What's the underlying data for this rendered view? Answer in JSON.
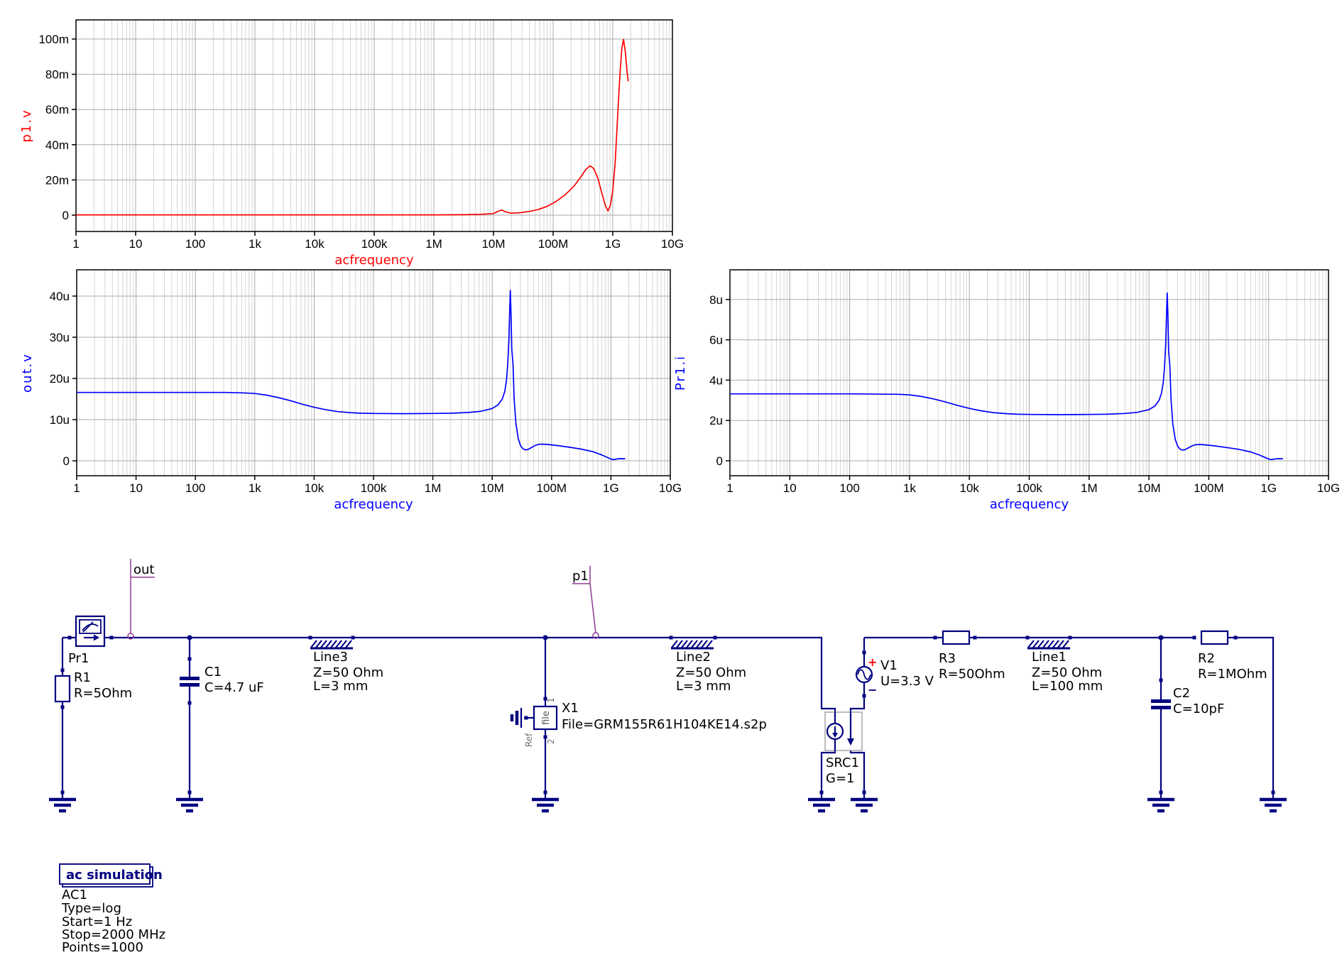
{
  "chart_data": [
    {
      "type": "line",
      "name": "p1.v",
      "color": "#ff0000",
      "xlabel": "acfrequency",
      "ylabel": "p1.v",
      "x_scale": "log",
      "x_range_hz": [
        1,
        10000000000
      ],
      "grid": true,
      "x_tick_labels": [
        "1",
        "10",
        "100",
        "1k",
        "10k",
        "100k",
        "1M",
        "10M",
        "100M",
        "1G",
        "10G"
      ],
      "y_unit": "milli",
      "y_ticks": [
        {
          "value": 0,
          "label": "0"
        },
        {
          "value": 20,
          "label": "20m"
        },
        {
          "value": 40,
          "label": "40m"
        },
        {
          "value": 60,
          "label": "60m"
        },
        {
          "value": 80,
          "label": "80m"
        },
        {
          "value": 100,
          "label": "100m"
        }
      ],
      "points_log10f_value": [
        [
          0,
          0.15
        ],
        [
          1,
          0.15
        ],
        [
          2,
          0.15
        ],
        [
          3,
          0.15
        ],
        [
          4,
          0.15
        ],
        [
          5,
          0.15
        ],
        [
          6,
          0.15
        ],
        [
          6.5,
          0.25
        ],
        [
          6.8,
          0.5
        ],
        [
          7.0,
          0.9
        ],
        [
          7.08,
          2.2
        ],
        [
          7.14,
          2.9
        ],
        [
          7.2,
          1.9
        ],
        [
          7.3,
          1.1
        ],
        [
          7.45,
          1.4
        ],
        [
          7.6,
          2.1
        ],
        [
          7.75,
          3.2
        ],
        [
          7.9,
          5.0
        ],
        [
          8.05,
          7.8
        ],
        [
          8.2,
          11.5
        ],
        [
          8.35,
          16.5
        ],
        [
          8.45,
          21.0
        ],
        [
          8.55,
          26.0
        ],
        [
          8.62,
          28.0
        ],
        [
          8.68,
          26.5
        ],
        [
          8.75,
          21.0
        ],
        [
          8.82,
          12.0
        ],
        [
          8.88,
          5.0
        ],
        [
          8.92,
          2.5
        ],
        [
          8.96,
          5.5
        ],
        [
          9.0,
          14.0
        ],
        [
          9.04,
          30.0
        ],
        [
          9.08,
          55.0
        ],
        [
          9.12,
          80.0
        ],
        [
          9.15,
          94.0
        ],
        [
          9.18,
          100.0
        ],
        [
          9.21,
          93.0
        ],
        [
          9.24,
          81.0
        ],
        [
          9.26,
          76.0
        ]
      ]
    },
    {
      "type": "line",
      "name": "out.v",
      "color": "#0000ff",
      "xlabel": "acfrequency",
      "ylabel": "out.v",
      "x_scale": "log",
      "x_range_hz": [
        1,
        10000000000
      ],
      "grid": true,
      "x_tick_labels": [
        "1",
        "10",
        "100",
        "1k",
        "10k",
        "100k",
        "1M",
        "10M",
        "100M",
        "1G",
        "10G"
      ],
      "y_unit": "micro",
      "y_ticks": [
        {
          "value": 0,
          "label": "0"
        },
        {
          "value": 10,
          "label": "10u"
        },
        {
          "value": 20,
          "label": "20u"
        },
        {
          "value": 30,
          "label": "30u"
        },
        {
          "value": 40,
          "label": "40u"
        }
      ],
      "points_log10f_value": [
        [
          0,
          16.6
        ],
        [
          0.5,
          16.6
        ],
        [
          1,
          16.6
        ],
        [
          1.5,
          16.6
        ],
        [
          2,
          16.6
        ],
        [
          2.5,
          16.6
        ],
        [
          2.8,
          16.5
        ],
        [
          3.0,
          16.35
        ],
        [
          3.2,
          15.95
        ],
        [
          3.4,
          15.35
        ],
        [
          3.6,
          14.6
        ],
        [
          3.8,
          13.75
        ],
        [
          4.0,
          13.0
        ],
        [
          4.2,
          12.4
        ],
        [
          4.4,
          11.95
        ],
        [
          4.6,
          11.7
        ],
        [
          4.8,
          11.55
        ],
        [
          5.0,
          11.5
        ],
        [
          5.5,
          11.45
        ],
        [
          6.0,
          11.5
        ],
        [
          6.3,
          11.55
        ],
        [
          6.6,
          11.75
        ],
        [
          6.8,
          12.0
        ],
        [
          7.0,
          12.7
        ],
        [
          7.1,
          13.6
        ],
        [
          7.17,
          15.0
        ],
        [
          7.21,
          16.8
        ],
        [
          7.24,
          19.5
        ],
        [
          7.26,
          23.0
        ],
        [
          7.28,
          29.0
        ],
        [
          7.295,
          37.0
        ],
        [
          7.305,
          41.5
        ],
        [
          7.315,
          37.0
        ],
        [
          7.33,
          27.0
        ],
        [
          7.35,
          23.5
        ],
        [
          7.37,
          15.0
        ],
        [
          7.4,
          9.0
        ],
        [
          7.44,
          5.3
        ],
        [
          7.48,
          3.6
        ],
        [
          7.52,
          2.9
        ],
        [
          7.56,
          2.65
        ],
        [
          7.6,
          2.75
        ],
        [
          7.66,
          3.2
        ],
        [
          7.72,
          3.7
        ],
        [
          7.78,
          4.0
        ],
        [
          7.85,
          4.05
        ],
        [
          7.95,
          3.95
        ],
        [
          8.1,
          3.7
        ],
        [
          8.3,
          3.3
        ],
        [
          8.5,
          2.85
        ],
        [
          8.7,
          2.2
        ],
        [
          8.85,
          1.4
        ],
        [
          8.95,
          0.75
        ],
        [
          9.0,
          0.45
        ],
        [
          9.03,
          0.32
        ],
        [
          9.07,
          0.35
        ],
        [
          9.12,
          0.5
        ],
        [
          9.18,
          0.52
        ],
        [
          9.24,
          0.5
        ]
      ]
    },
    {
      "type": "line",
      "name": "Pr1.i",
      "color": "#0000ff",
      "xlabel": "acfrequency",
      "ylabel": "Pr1.i",
      "x_scale": "log",
      "x_range_hz": [
        1,
        10000000000
      ],
      "grid": true,
      "x_tick_labels": [
        "1",
        "10",
        "100",
        "1k",
        "10k",
        "100k",
        "1M",
        "10M",
        "100M",
        "1G",
        "10G"
      ],
      "y_unit": "micro",
      "y_ticks": [
        {
          "value": 0,
          "label": "0"
        },
        {
          "value": 2,
          "label": "2u"
        },
        {
          "value": 4,
          "label": "4u"
        },
        {
          "value": 6,
          "label": "6u"
        },
        {
          "value": 8,
          "label": "8u"
        }
      ],
      "points_log10f_value": [
        [
          0,
          3.32
        ],
        [
          1,
          3.32
        ],
        [
          2,
          3.32
        ],
        [
          2.8,
          3.3
        ],
        [
          3.0,
          3.27
        ],
        [
          3.2,
          3.19
        ],
        [
          3.4,
          3.07
        ],
        [
          3.6,
          2.92
        ],
        [
          3.8,
          2.75
        ],
        [
          4.0,
          2.6
        ],
        [
          4.2,
          2.48
        ],
        [
          4.4,
          2.39
        ],
        [
          4.6,
          2.34
        ],
        [
          4.8,
          2.31
        ],
        [
          5.0,
          2.3
        ],
        [
          5.5,
          2.29
        ],
        [
          6.0,
          2.3
        ],
        [
          6.3,
          2.31
        ],
        [
          6.6,
          2.35
        ],
        [
          6.8,
          2.4
        ],
        [
          7.0,
          2.54
        ],
        [
          7.1,
          2.72
        ],
        [
          7.17,
          3.0
        ],
        [
          7.21,
          3.36
        ],
        [
          7.24,
          3.9
        ],
        [
          7.26,
          4.6
        ],
        [
          7.28,
          5.8
        ],
        [
          7.295,
          7.4
        ],
        [
          7.305,
          8.35
        ],
        [
          7.315,
          7.4
        ],
        [
          7.33,
          5.4
        ],
        [
          7.35,
          4.7
        ],
        [
          7.37,
          3.0
        ],
        [
          7.4,
          1.8
        ],
        [
          7.44,
          1.06
        ],
        [
          7.48,
          0.72
        ],
        [
          7.52,
          0.58
        ],
        [
          7.56,
          0.53
        ],
        [
          7.6,
          0.55
        ],
        [
          7.66,
          0.64
        ],
        [
          7.72,
          0.74
        ],
        [
          7.78,
          0.8
        ],
        [
          7.85,
          0.81
        ],
        [
          7.95,
          0.79
        ],
        [
          8.1,
          0.74
        ],
        [
          8.3,
          0.66
        ],
        [
          8.5,
          0.57
        ],
        [
          8.7,
          0.44
        ],
        [
          8.85,
          0.28
        ],
        [
          8.95,
          0.15
        ],
        [
          9.0,
          0.09
        ],
        [
          9.03,
          0.064
        ],
        [
          9.07,
          0.07
        ],
        [
          9.12,
          0.1
        ],
        [
          9.18,
          0.104
        ],
        [
          9.24,
          0.1
        ]
      ]
    }
  ],
  "schematic": {
    "wire_color": "#000080",
    "net_label_color": "#8f3b94",
    "net_labels": {
      "out": "out",
      "p1": "p1"
    },
    "components": {
      "pr1": {
        "name": "Pr1"
      },
      "r1": {
        "name": "R1",
        "value": "R=5Ohm"
      },
      "c1": {
        "name": "C1",
        "value": "C=4.7 uF"
      },
      "line3": {
        "name": "Line3",
        "z": "Z=50 Ohm",
        "l": "L=3 mm"
      },
      "x1": {
        "name": "X1",
        "value": "File=GRM155R61H104KE14.s2p",
        "pin1": "1",
        "pin2": "2",
        "ref": "Ref",
        "body": "file"
      },
      "line2": {
        "name": "Line2",
        "z": "Z=50 Ohm",
        "l": "L=3 mm"
      },
      "src1": {
        "name": "SRC1",
        "value": "G=1"
      },
      "v1": {
        "name": "V1",
        "value": "U=3.3 V",
        "plus": "+",
        "minus": "−"
      },
      "r3": {
        "name": "R3",
        "value": "R=50Ohm"
      },
      "line1": {
        "name": "Line1",
        "z": "Z=50 Ohm",
        "l": "L=100 mm"
      },
      "c2": {
        "name": "C2",
        "value": "C=10pF"
      },
      "r2": {
        "name": "R2",
        "value": "R=1MOhm"
      }
    },
    "simulation": {
      "title": "ac simulation",
      "lines": [
        "AC1",
        "Type=log",
        "Start=1 Hz",
        "Stop=2000 MHz",
        "Points=1000"
      ]
    }
  }
}
